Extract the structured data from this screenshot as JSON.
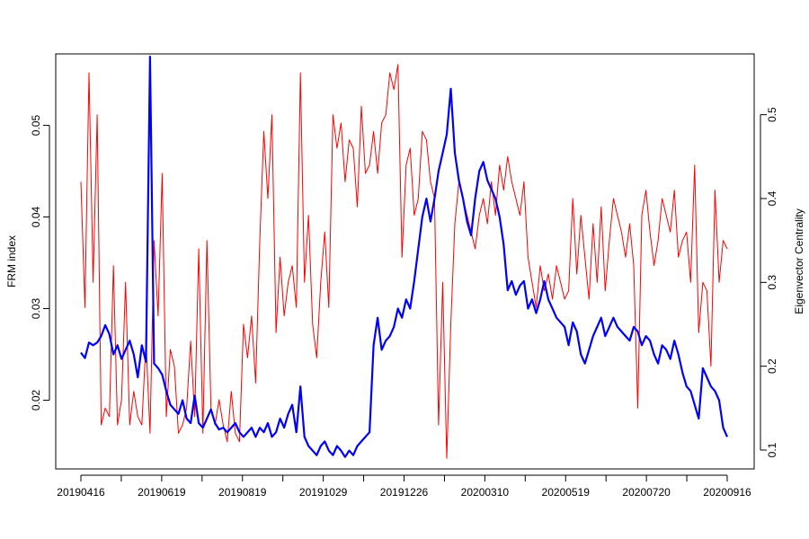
{
  "chart_data": {
    "type": "line",
    "title": "",
    "xlabel": "",
    "ylabel_left": "FRM index",
    "ylabel_right": "Eigenvector Centrality",
    "grid": false,
    "legend": "none",
    "x_tick_labels": [
      "20190416",
      "20190619",
      "20190819",
      "20191029",
      "20191226",
      "20200310",
      "20200519",
      "20200720",
      "20200916"
    ],
    "ylim_left": [
      0.0125,
      0.0578
    ],
    "yticks_left": [
      "0.02",
      "0.03",
      "0.04",
      "0.05"
    ],
    "ylim_right": [
      0.0775,
      0.5725
    ],
    "yticks_right": [
      "0.1",
      "0.2",
      "0.3",
      "0.4",
      "0.5"
    ],
    "series": [
      {
        "axis": "left",
        "color": "#0000ff",
        "values": [
          0.0252,
          0.0246,
          0.0263,
          0.026,
          0.0263,
          0.027,
          0.0282,
          0.0272,
          0.025,
          0.026,
          0.0245,
          0.0255,
          0.0265,
          0.025,
          0.0225,
          0.026,
          0.0242,
          0.0575,
          0.024,
          0.0235,
          0.0228,
          0.021,
          0.0195,
          0.019,
          0.0185,
          0.02,
          0.018,
          0.0175,
          0.0205,
          0.0175,
          0.017,
          0.018,
          0.019,
          0.0175,
          0.0168,
          0.017,
          0.0165,
          0.017,
          0.0175,
          0.0165,
          0.016,
          0.0165,
          0.017,
          0.016,
          0.017,
          0.0165,
          0.0175,
          0.016,
          0.0165,
          0.018,
          0.017,
          0.0185,
          0.0195,
          0.0165,
          0.0215,
          0.016,
          0.015,
          0.0145,
          0.014,
          0.015,
          0.0155,
          0.0145,
          0.014,
          0.015,
          0.0145,
          0.0138,
          0.0145,
          0.014,
          0.015,
          0.0155,
          0.016,
          0.0165,
          0.026,
          0.029,
          0.0255,
          0.0265,
          0.027,
          0.028,
          0.03,
          0.029,
          0.031,
          0.03,
          0.033,
          0.0365,
          0.04,
          0.042,
          0.0395,
          0.042,
          0.045,
          0.047,
          0.049,
          0.054,
          0.047,
          0.044,
          0.042,
          0.0395,
          0.038,
          0.042,
          0.045,
          0.046,
          0.044,
          0.043,
          0.042,
          0.04,
          0.037,
          0.032,
          0.033,
          0.0315,
          0.0325,
          0.033,
          0.03,
          0.031,
          0.0295,
          0.031,
          0.033,
          0.031,
          0.03,
          0.029,
          0.0285,
          0.028,
          0.026,
          0.0285,
          0.0275,
          0.025,
          0.024,
          0.0255,
          0.027,
          0.028,
          0.029,
          0.027,
          0.028,
          0.029,
          0.028,
          0.0275,
          0.027,
          0.0265,
          0.028,
          0.0275,
          0.026,
          0.027,
          0.0265,
          0.025,
          0.024,
          0.026,
          0.0255,
          0.0245,
          0.0265,
          0.025,
          0.023,
          0.0215,
          0.021,
          0.0195,
          0.018,
          0.0235,
          0.0225,
          0.0215,
          0.021,
          0.02,
          0.017,
          0.016
        ]
      },
      {
        "axis": "right",
        "color": "#ff0000",
        "values": [
          0.42,
          0.27,
          0.55,
          0.3,
          0.5,
          0.13,
          0.15,
          0.14,
          0.32,
          0.13,
          0.16,
          0.3,
          0.13,
          0.17,
          0.14,
          0.13,
          0.23,
          0.12,
          0.35,
          0.26,
          0.43,
          0.14,
          0.22,
          0.2,
          0.12,
          0.13,
          0.15,
          0.23,
          0.14,
          0.34,
          0.12,
          0.35,
          0.15,
          0.13,
          0.16,
          0.13,
          0.11,
          0.17,
          0.12,
          0.11,
          0.25,
          0.21,
          0.26,
          0.18,
          0.35,
          0.48,
          0.4,
          0.5,
          0.24,
          0.33,
          0.26,
          0.3,
          0.32,
          0.27,
          0.55,
          0.3,
          0.38,
          0.25,
          0.21,
          0.3,
          0.36,
          0.27,
          0.5,
          0.46,
          0.49,
          0.42,
          0.47,
          0.46,
          0.39,
          0.51,
          0.43,
          0.44,
          0.48,
          0.43,
          0.49,
          0.5,
          0.55,
          0.53,
          0.56,
          0.33,
          0.44,
          0.46,
          0.38,
          0.4,
          0.48,
          0.47,
          0.42,
          0.4,
          0.13,
          0.3,
          0.09,
          0.25,
          0.37,
          0.42,
          0.4,
          0.38,
          0.36,
          0.34,
          0.38,
          0.4,
          0.37,
          0.42,
          0.38,
          0.44,
          0.41,
          0.45,
          0.42,
          0.4,
          0.38,
          0.42,
          0.33,
          0.3,
          0.27,
          0.32,
          0.29,
          0.31,
          0.28,
          0.32,
          0.3,
          0.28,
          0.29,
          0.4,
          0.31,
          0.38,
          0.33,
          0.28,
          0.37,
          0.3,
          0.39,
          0.29,
          0.35,
          0.4,
          0.38,
          0.36,
          0.33,
          0.37,
          0.32,
          0.15,
          0.38,
          0.41,
          0.36,
          0.32,
          0.35,
          0.4,
          0.38,
          0.36,
          0.41,
          0.33,
          0.35,
          0.36,
          0.3,
          0.44,
          0.24,
          0.3,
          0.29,
          0.2,
          0.41,
          0.3,
          0.35,
          0.34
        ]
      }
    ]
  }
}
